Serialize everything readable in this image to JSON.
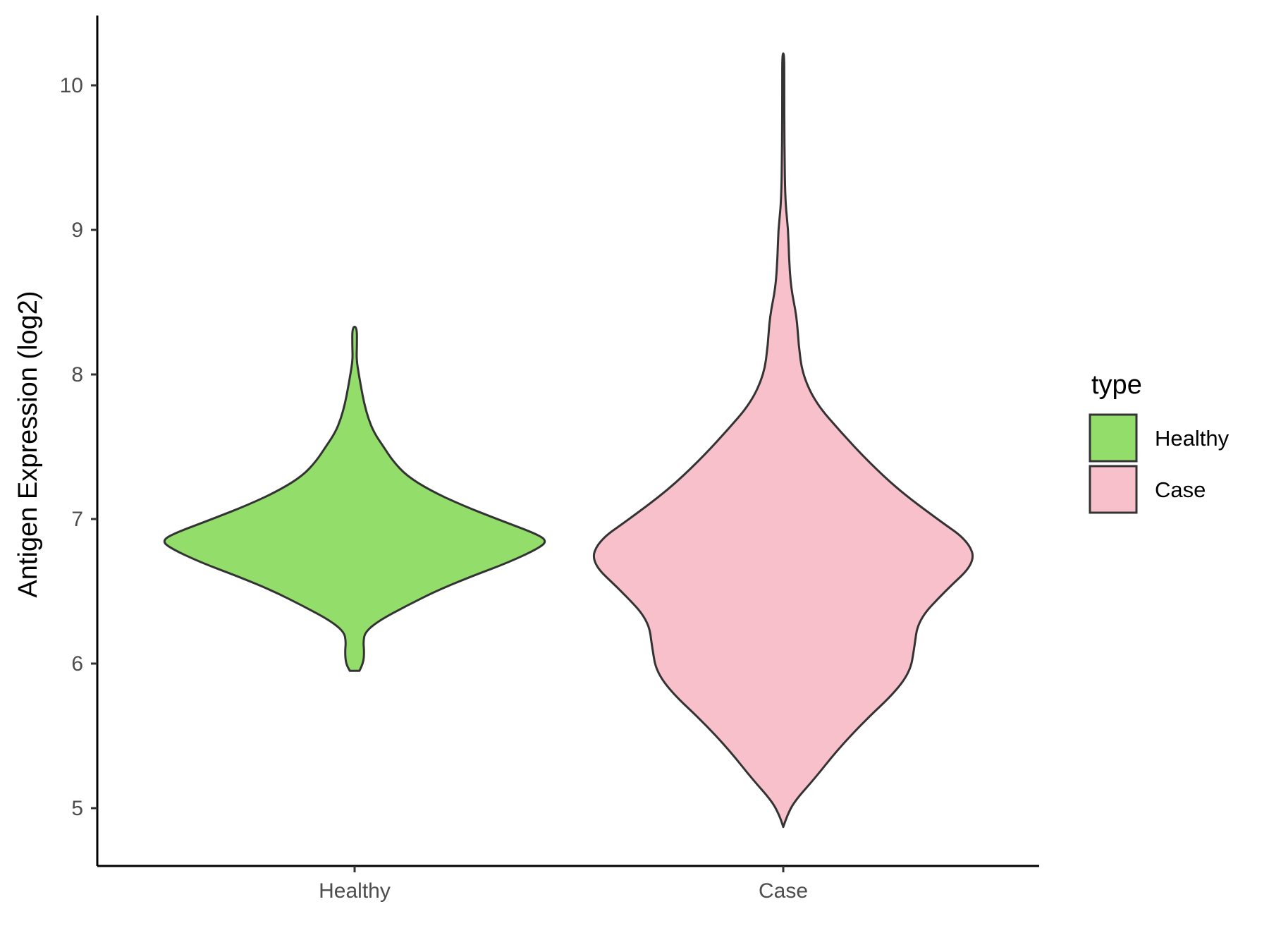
{
  "chart_data": {
    "type": "violin",
    "title": "",
    "xlabel": "",
    "ylabel": "Antigen Expression (log2)",
    "ylim": [
      4.6,
      10.5
    ],
    "y_ticks": [
      "5",
      "6",
      "7",
      "8",
      "9",
      "10"
    ],
    "categories": [
      "Healthy",
      "Case"
    ],
    "grid": false,
    "legend": {
      "title": "type",
      "position": "right",
      "entries": [
        {
          "label": "Healthy",
          "color": "#93DD6A"
        },
        {
          "label": "Case",
          "color": "#F7C0CB"
        }
      ]
    },
    "series": [
      {
        "name": "Healthy",
        "color": "#93DD6A",
        "range": [
          5.95,
          8.33
        ],
        "density_profile": [
          [
            5.95,
            0.025
          ],
          [
            6.0,
            0.045
          ],
          [
            6.08,
            0.05
          ],
          [
            6.15,
            0.045
          ],
          [
            6.22,
            0.055
          ],
          [
            6.3,
            0.13
          ],
          [
            6.4,
            0.27
          ],
          [
            6.5,
            0.42
          ],
          [
            6.6,
            0.6
          ],
          [
            6.7,
            0.8
          ],
          [
            6.8,
            0.96
          ],
          [
            6.85,
            1.0
          ],
          [
            6.9,
            0.94
          ],
          [
            7.0,
            0.74
          ],
          [
            7.1,
            0.55
          ],
          [
            7.2,
            0.39
          ],
          [
            7.3,
            0.27
          ],
          [
            7.4,
            0.2
          ],
          [
            7.5,
            0.15
          ],
          [
            7.6,
            0.1
          ],
          [
            7.7,
            0.07
          ],
          [
            7.8,
            0.05
          ],
          [
            7.9,
            0.035
          ],
          [
            8.0,
            0.022
          ],
          [
            8.1,
            0.01
          ],
          [
            8.2,
            0.012
          ],
          [
            8.33,
            0.012
          ]
        ]
      },
      {
        "name": "Case",
        "color": "#F7C0CB",
        "range": [
          4.87,
          10.22
        ],
        "density_profile": [
          [
            4.87,
            0.0
          ],
          [
            4.95,
            0.02
          ],
          [
            5.05,
            0.06
          ],
          [
            5.2,
            0.16
          ],
          [
            5.4,
            0.28
          ],
          [
            5.6,
            0.42
          ],
          [
            5.8,
            0.58
          ],
          [
            5.95,
            0.66
          ],
          [
            6.1,
            0.68
          ],
          [
            6.3,
            0.7
          ],
          [
            6.5,
            0.84
          ],
          [
            6.7,
            1.0
          ],
          [
            6.85,
            0.96
          ],
          [
            7.0,
            0.8
          ],
          [
            7.2,
            0.6
          ],
          [
            7.4,
            0.44
          ],
          [
            7.6,
            0.3
          ],
          [
            7.8,
            0.17
          ],
          [
            8.0,
            0.1
          ],
          [
            8.2,
            0.08
          ],
          [
            8.4,
            0.07
          ],
          [
            8.6,
            0.04
          ],
          [
            8.8,
            0.03
          ],
          [
            9.0,
            0.026
          ],
          [
            9.2,
            0.01
          ],
          [
            9.6,
            0.006
          ],
          [
            10.0,
            0.005
          ],
          [
            10.22,
            0.005
          ]
        ]
      }
    ]
  }
}
